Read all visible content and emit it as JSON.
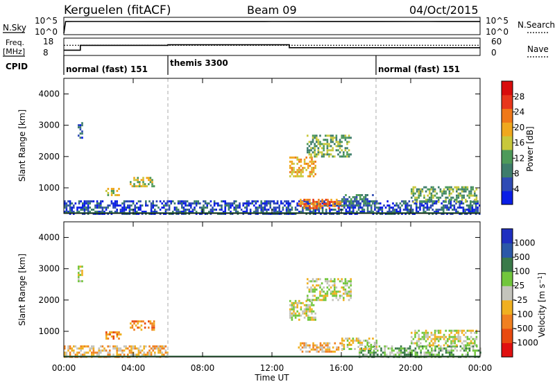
{
  "header": {
    "radar": "Kerguelen (fitACF)",
    "beam": "Beam 09",
    "date": "04/Oct/2015"
  },
  "status_panel": {
    "nsky_label": "N.Sky",
    "nsky_ticks": [
      "10^5",
      "10^0"
    ],
    "nsearch_label": "N.Search",
    "nsearch_ticks": [
      "10^5",
      "10^0"
    ],
    "freq_label_1": "Freq.",
    "freq_label_2": "[MHz]",
    "freq_ticks": [
      "18",
      "8"
    ],
    "nave_label": "Nave",
    "nave_ticks": [
      "60",
      "0"
    ],
    "cpid_label": "CPID"
  },
  "cpid_segments": [
    {
      "label": "normal (fast) 151",
      "start_h": 0,
      "end_h": 6
    },
    {
      "label": "themis 3300",
      "start_h": 6,
      "end_h": 18
    },
    {
      "label": "normal (fast) 151",
      "start_h": 18,
      "end_h": 24
    }
  ],
  "colors": {
    "power": [
      "#0a1ee6",
      "#2f4bb4",
      "#3e7d6c",
      "#4e9a5a",
      "#c8c83c",
      "#f0a81e",
      "#f07818",
      "#e8361c",
      "#d80c0c"
    ],
    "velocity": [
      "#1f2fc0",
      "#2b58a8",
      "#3a7a4a",
      "#72c63c",
      "#c4c4bc",
      "#f0b020",
      "#f08020",
      "#e84a10",
      "#e01010"
    ]
  },
  "chart_data": [
    {
      "type": "line",
      "title": "N.Sky / N.Search",
      "x_range_h": [
        0,
        24
      ],
      "series": [
        {
          "name": "N.Sky",
          "x": [
            0,
            0.1,
            0.5,
            3,
            6,
            9,
            12,
            15,
            18,
            21,
            24
          ],
          "values": [
            1,
            50000,
            52000,
            53000,
            51000,
            50000,
            52000,
            51000,
            50000,
            52000,
            51000
          ]
        },
        {
          "name": "N.Search",
          "x": [
            0,
            24
          ],
          "values": [
            1,
            1
          ]
        }
      ]
    },
    {
      "type": "line",
      "title": "Freq. / Nave",
      "x_range_h": [
        0,
        24
      ],
      "series": [
        {
          "name": "Freq. [MHz]",
          "x": [
            0,
            0.95,
            0.95,
            6,
            6,
            13,
            13,
            24
          ],
          "values": [
            10.8,
            10.8,
            14.3,
            14.3,
            14.7,
            14.7,
            12.6,
            12.6
          ]
        },
        {
          "name": "Nave",
          "x": [
            0,
            24
          ],
          "values": [
            38,
            38
          ]
        }
      ]
    },
    {
      "type": "heatmap",
      "title": "Power",
      "ylabel": "Slant Range [km]",
      "xlabel": "Time UT",
      "x_ticks": [
        "00:00",
        "04:00",
        "08:00",
        "12:00",
        "16:00",
        "20:00",
        "00:00"
      ],
      "y_ticks": [
        "1000",
        "2000",
        "3000",
        "4000"
      ],
      "ylim": [
        180,
        4500
      ],
      "colorbar_label": "Power [dB]",
      "colorbar_ticks": [
        "4",
        "8",
        "12",
        "16",
        "20",
        "24",
        "28"
      ],
      "regions": [
        {
          "t0": 0,
          "t1": 24,
          "r0": 180,
          "r1": 600,
          "level": 1
        },
        {
          "t0": 0.8,
          "t1": 1.1,
          "r0": 2600,
          "r1": 3100,
          "level": 1
        },
        {
          "t0": 2.4,
          "t1": 3.3,
          "r0": 750,
          "r1": 1000,
          "level": 4
        },
        {
          "t0": 3.8,
          "t1": 5.2,
          "r0": 1050,
          "r1": 1350,
          "level": 4
        },
        {
          "t0": 13.0,
          "t1": 14.5,
          "r0": 1400,
          "r1": 2000,
          "level": 5
        },
        {
          "t0": 14.0,
          "t1": 16.5,
          "r0": 2000,
          "r1": 2700,
          "level": 3
        },
        {
          "t0": 13.5,
          "t1": 16.0,
          "r0": 350,
          "r1": 650,
          "level": 6
        },
        {
          "t0": 16.0,
          "t1": 18.0,
          "r0": 450,
          "r1": 800,
          "level": 2
        },
        {
          "t0": 20.0,
          "t1": 23.8,
          "r0": 550,
          "r1": 1050,
          "level": 3
        }
      ],
      "dashed_lines_h": [
        6,
        18
      ]
    },
    {
      "type": "heatmap",
      "title": "Velocity",
      "ylabel": "Slant Range [km]",
      "xlabel": "Time UT",
      "x_ticks": [
        "00:00",
        "04:00",
        "08:00",
        "12:00",
        "16:00",
        "20:00",
        "00:00"
      ],
      "y_ticks": [
        "1000",
        "2000",
        "3000",
        "4000"
      ],
      "ylim": [
        180,
        4500
      ],
      "colorbar_label": "Velocity [m s^-1]",
      "colorbar_ticks": [
        "1000",
        "500",
        "100",
        "25",
        "-25",
        "-100",
        "-500",
        "-1000"
      ],
      "regions": [
        {
          "t0": 0,
          "t1": 6,
          "r0": 180,
          "r1": 550,
          "level": 5
        },
        {
          "t0": 17,
          "t1": 24,
          "r0": 180,
          "r1": 550,
          "level": 3
        },
        {
          "t0": 0.8,
          "t1": 1.1,
          "r0": 2600,
          "r1": 3100,
          "level": 4
        },
        {
          "t0": 2.4,
          "t1": 3.3,
          "r0": 750,
          "r1": 1000,
          "level": 6
        },
        {
          "t0": 3.8,
          "t1": 5.2,
          "r0": 1050,
          "r1": 1350,
          "level": 6
        },
        {
          "t0": 13.0,
          "t1": 14.5,
          "r0": 1400,
          "r1": 2000,
          "level": 4
        },
        {
          "t0": 14.0,
          "t1": 16.5,
          "r0": 2000,
          "r1": 2700,
          "level": 4
        },
        {
          "t0": 13.5,
          "t1": 16.0,
          "r0": 350,
          "r1": 650,
          "level": 5
        },
        {
          "t0": 16.0,
          "t1": 18.0,
          "r0": 450,
          "r1": 800,
          "level": 4
        },
        {
          "t0": 20.0,
          "t1": 23.8,
          "r0": 550,
          "r1": 1050,
          "level": 4
        }
      ],
      "dashed_lines_h": [
        6,
        18
      ]
    }
  ]
}
